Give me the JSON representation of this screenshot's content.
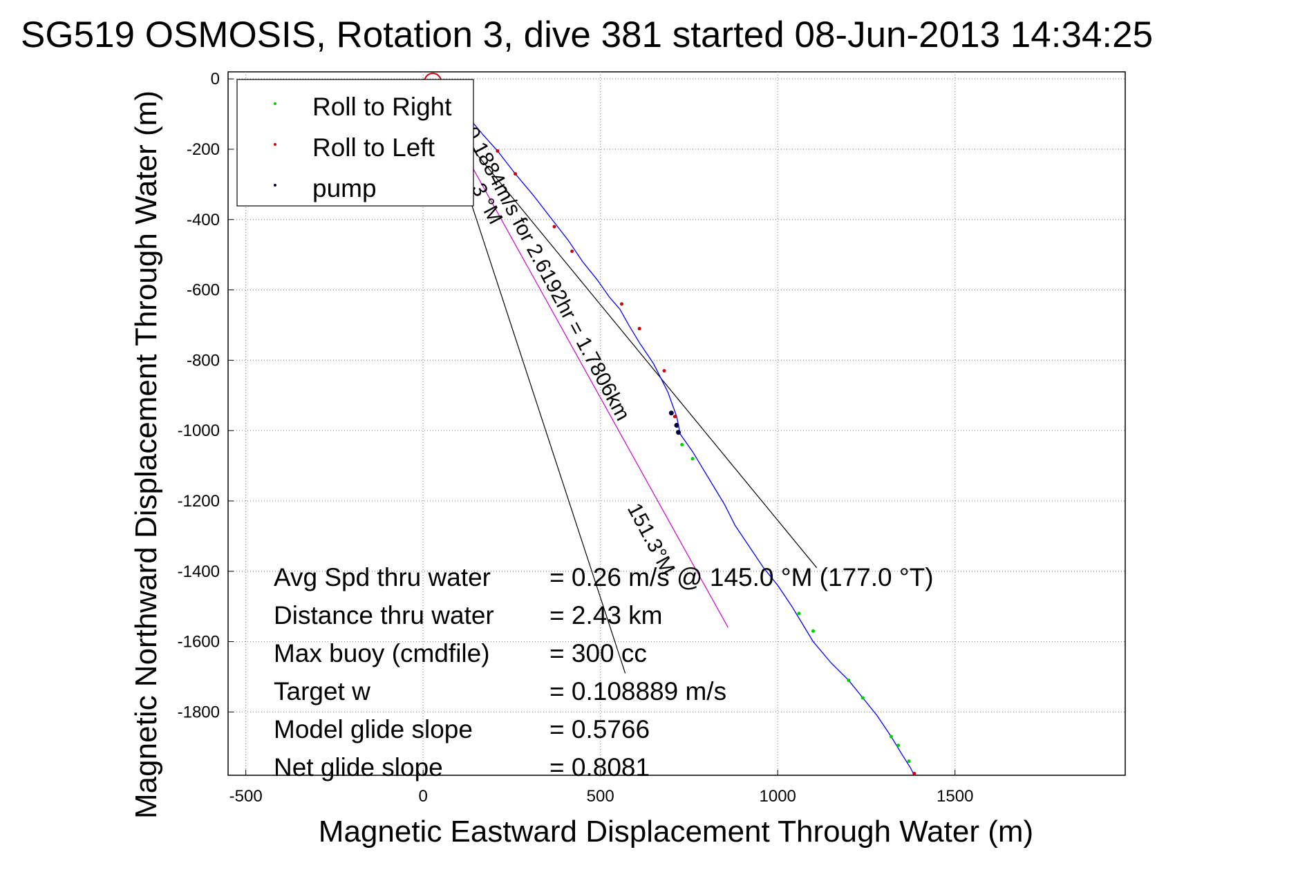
{
  "chart_data": {
    "type": "scatter",
    "title": "SG519 OSMOSIS, Rotation 3, dive 381 started 08-Jun-2013 14:34:25",
    "xlabel": "Magnetic Eastward Displacement Through Water (m)",
    "ylabel": "Magnetic Northward Displacement Through Water (m)",
    "xlim": [
      -550,
      1980
    ],
    "ylim": [
      -1980,
      20
    ],
    "grid": true,
    "x_ticks": [
      -500,
      0,
      500,
      1000,
      1500
    ],
    "y_ticks": [
      0,
      -200,
      -400,
      -600,
      -800,
      -1000,
      -1200,
      -1400,
      -1600,
      -1800
    ],
    "legend_position": "top-left",
    "legend": [
      {
        "label": "Roll to Right",
        "color": "#00cc00"
      },
      {
        "label": "Roll to Left",
        "color": "#cc0000"
      },
      {
        "label": "pump",
        "color": "#000040"
      }
    ],
    "track": {
      "color": "#0000ff",
      "points": [
        [
          0,
          0
        ],
        [
          40,
          -20
        ],
        [
          80,
          -55
        ],
        [
          120,
          -100
        ],
        [
          170,
          -160
        ],
        [
          210,
          -205
        ],
        [
          260,
          -270
        ],
        [
          310,
          -330
        ],
        [
          360,
          -395
        ],
        [
          410,
          -460
        ],
        [
          450,
          -520
        ],
        [
          490,
          -570
        ],
        [
          525,
          -620
        ],
        [
          555,
          -655
        ],
        [
          580,
          -700
        ],
        [
          610,
          -750
        ],
        [
          650,
          -810
        ],
        [
          690,
          -890
        ],
        [
          715,
          -960
        ],
        [
          725,
          -1010
        ],
        [
          760,
          -1060
        ],
        [
          790,
          -1110
        ],
        [
          820,
          -1160
        ],
        [
          850,
          -1210
        ],
        [
          880,
          -1270
        ],
        [
          920,
          -1330
        ],
        [
          960,
          -1390
        ],
        [
          1000,
          -1440
        ],
        [
          1040,
          -1500
        ],
        [
          1070,
          -1550
        ],
        [
          1100,
          -1600
        ],
        [
          1150,
          -1660
        ],
        [
          1200,
          -1710
        ],
        [
          1240,
          -1760
        ],
        [
          1280,
          -1810
        ],
        [
          1320,
          -1870
        ],
        [
          1350,
          -1920
        ],
        [
          1375,
          -1960
        ],
        [
          1385,
          -1980
        ]
      ]
    },
    "roll_right_points": [
      [
        90,
        -70
      ],
      [
        730,
        -1040
      ],
      [
        760,
        -1080
      ],
      [
        1060,
        -1520
      ],
      [
        1100,
        -1570
      ],
      [
        1200,
        -1710
      ],
      [
        1240,
        -1760
      ],
      [
        1320,
        -1870
      ],
      [
        1340,
        -1895
      ],
      [
        1370,
        -1940
      ]
    ],
    "roll_left_points": [
      [
        20,
        -5
      ],
      [
        120,
        -90
      ],
      [
        210,
        -205
      ],
      [
        260,
        -270
      ],
      [
        370,
        -420
      ],
      [
        420,
        -490
      ],
      [
        560,
        -640
      ],
      [
        610,
        -710
      ],
      [
        680,
        -830
      ],
      [
        710,
        -960
      ],
      [
        1385,
        -1975
      ]
    ],
    "pump_points": [
      [
        700,
        -950
      ],
      [
        715,
        -985
      ],
      [
        720,
        -1005
      ]
    ],
    "reference_lines": [
      {
        "color": "#000000",
        "points": [
          [
            50,
            -90
          ],
          [
            1110,
            -1390
          ]
        ]
      },
      {
        "color": "#000000",
        "points": [
          [
            50,
            -90
          ],
          [
            570,
            -1690
          ]
        ]
      },
      {
        "color": "#cc00cc",
        "points": [
          [
            50,
            -90
          ],
          [
            860,
            -1560
          ]
        ]
      }
    ],
    "rotated_annotations": [
      {
        "text": "0.1884m/s for 2.6192hr = 1.7806km",
        "x": 115,
        "y": -150,
        "angle": 62
      },
      {
        "text": "151.3°M",
        "x": 575,
        "y": -1220,
        "angle": 62
      },
      {
        "text": "3 °M",
        "x": 135,
        "y": -310,
        "angle": 62
      }
    ],
    "stats": [
      {
        "label": "Avg Spd thru water",
        "value": "=  0.26 m/s @ 145.0 °M (177.0 °T)"
      },
      {
        "label": "Distance thru water",
        "value": "=  2.43 km"
      },
      {
        "label": "Max buoy (cmdfile)",
        "value": "= 300 cc"
      },
      {
        "label": "Target w",
        "value": "= 0.108889 m/s"
      },
      {
        "label": "Model glide slope",
        "value": "= 0.5766"
      },
      {
        "label": "Net glide slope",
        "value": "= 0.8081"
      }
    ]
  }
}
